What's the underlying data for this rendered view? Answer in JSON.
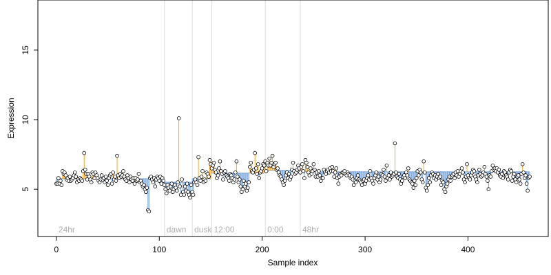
{
  "chart_data": {
    "type": "scatter",
    "xlabel": "Sample index",
    "ylabel": "Expression",
    "xlim": [
      -18,
      478
    ],
    "ylim": [
      1.6,
      18.6
    ],
    "x_ticks": [
      0,
      100,
      200,
      300,
      400
    ],
    "y_ticks": [
      5,
      10,
      15
    ],
    "grid": false,
    "legend": "none",
    "colors": {
      "above_median": "#f5a623",
      "below_median": "#6fa0dc",
      "median_step": "#9bbbe6",
      "points_fill": "#ffffff",
      "points_stroke": "#000000",
      "region_lines": "#dddddd",
      "region_text": "#b0b0b0"
    },
    "regions": [
      {
        "label": "24hr",
        "start": 0
      },
      {
        "label": "dawn",
        "start": 105
      },
      {
        "label": "dusk",
        "start": 132
      },
      {
        "label": "12:00",
        "start": 151
      },
      {
        "label": "0:00",
        "start": 203
      },
      {
        "label": "48hr",
        "start": 237
      }
    ],
    "segment_medians": [
      5.75,
      5.5,
      5.75,
      6.15,
      6.35,
      6.25
    ],
    "y": [
      5.4,
      5.4,
      5.8,
      5.4,
      5.6,
      5.3,
      6.3,
      6.1,
      6.2,
      6.0,
      5.7,
      5.8,
      5.6,
      5.9,
      5.6,
      5.7,
      5.8,
      6.0,
      6.2,
      5.9,
      5.5,
      5.7,
      5.6,
      5.8,
      5.7,
      5.6,
      6.3,
      7.6,
      6.4,
      6.1,
      5.7,
      6.1,
      5.9,
      5.7,
      5.5,
      6.2,
      6.1,
      5.8,
      6.2,
      6.0,
      5.8,
      5.6,
      5.5,
      5.7,
      6.0,
      5.7,
      5.8,
      5.5,
      5.9,
      5.6,
      5.3,
      5.8,
      6.0,
      6.1,
      5.4,
      6.2,
      5.7,
      5.9,
      5.6,
      7.4,
      6.0,
      5.8,
      6.1,
      5.9,
      6.0,
      6.3,
      5.9,
      5.7,
      5.6,
      6.0,
      5.8,
      5.5,
      5.9,
      5.7,
      5.6,
      5.8,
      5.4,
      5.8,
      5.6,
      5.7,
      6.1,
      5.5,
      5.6,
      5.4,
      5.2,
      5.3,
      5.0,
      4.8,
      5.1,
      3.5,
      3.4,
      5.8,
      5.9,
      5.7,
      5.5,
      5.8,
      5.2,
      5.7,
      5.9,
      5.8,
      5.6,
      5.9,
      5.4,
      5.8,
      5.6,
      5.3,
      5.0,
      4.7,
      5.3,
      5.1,
      4.9,
      5.2,
      5.4,
      4.8,
      5.0,
      5.3,
      5.1,
      4.9,
      5.5,
      10.1,
      5.2,
      4.6,
      5.7,
      4.8,
      4.6,
      5.2,
      4.9,
      5.4,
      4.8,
      4.6,
      4.4,
      5.3,
      4.8,
      4.6,
      5.5,
      5.7,
      5.5,
      5.3,
      7.3,
      5.8,
      5.6,
      5.9,
      6.3,
      5.5,
      5.7,
      5.6,
      6.2,
      6.1,
      5.9,
      7.1,
      6.8,
      6.5,
      6.7,
      6.9,
      6.4,
      6.2,
      5.8,
      6.0,
      6.5,
      7.0,
      6.3,
      6.1,
      5.7,
      6.2,
      6.3,
      6.0,
      5.9,
      5.8,
      5.6,
      6.1,
      6.0,
      5.8,
      5.5,
      5.7,
      6.2,
      7.0,
      5.9,
      5.5,
      5.7,
      5.2,
      4.8,
      5.0,
      5.6,
      5.2,
      5.4,
      4.9,
      5.1,
      5.5,
      6.6,
      6.9,
      6.3,
      6.2,
      6.4,
      7.6,
      6.5,
      6.1,
      6.8,
      5.8,
      6.2,
      6.3,
      6.5,
      6.8,
      6.7,
      7.0,
      6.3,
      6.9,
      6.7,
      7.2,
      6.7,
      6.9,
      7.4,
      6.6,
      6.8,
      6.9,
      6.4,
      6.5,
      6.2,
      6.0,
      5.9,
      5.7,
      5.5,
      5.3,
      5.6,
      6.0,
      6.2,
      5.8,
      6.1,
      5.7,
      5.9,
      6.4,
      6.9,
      6.3,
      6.1,
      6.2,
      6.4,
      6.7,
      6.5,
      6.2,
      6.6,
      6.8,
      6.3,
      5.8,
      7.1,
      6.9,
      6.6,
      6.2,
      6.0,
      6.5,
      6.1,
      6.3,
      6.8,
      6.4,
      5.9,
      6.2,
      5.9,
      6.3,
      6.0,
      5.6,
      5.8,
      5.8,
      6.4,
      6.2,
      6.1,
      6.3,
      6.4,
      6.2,
      6.5,
      6.3,
      6.6,
      6.3,
      5.9,
      6.2,
      6.5,
      5.8,
      5.4,
      5.9,
      6.1,
      6.0,
      6.2,
      6.2,
      6.3,
      6.1,
      6.0,
      6.2,
      6.1,
      6.0,
      5.8,
      5.9,
      5.7,
      5.3,
      5.6,
      5.5,
      5.8,
      6.0,
      5.7,
      5.6,
      5.5,
      5.3,
      5.6,
      5.7,
      5.4,
      5.6,
      5.8,
      6.0,
      5.7,
      6.3,
      5.8,
      5.6,
      5.4,
      5.8,
      6.0,
      6.2,
      5.7,
      5.9,
      5.5,
      5.7,
      6.1,
      6.0,
      6.4,
      5.9,
      5.6,
      6.7,
      5.8,
      6.0,
      5.7,
      6.2,
      5.9,
      6.0,
      6.1,
      8.3,
      6.2,
      5.9,
      5.8,
      6.1,
      5.7,
      5.4,
      5.6,
      5.9,
      6.0,
      5.8,
      6.2,
      6.0,
      6.5,
      5.7,
      5.6,
      5.5,
      5.4,
      5.1,
      5.6,
      5.3,
      5.8,
      6.3,
      6.0,
      6.4,
      6.2,
      5.7,
      5.5,
      7.0,
      6.2,
      5.1,
      4.9,
      5.3,
      5.8,
      5.5,
      6.0,
      6.2,
      6.1,
      5.8,
      6.0,
      5.7,
      5.9,
      6.1,
      5.8,
      5.9,
      5.3,
      5.6,
      5.5,
      5.0,
      4.8,
      5.2,
      5.4,
      5.7,
      5.9,
      5.6,
      5.9,
      6.0,
      6.1,
      5.8,
      6.2,
      6.0,
      6.3,
      5.9,
      6.1,
      6.3,
      6.5,
      6.2,
      5.7,
      5.5,
      5.9,
      6.8,
      6.0,
      5.8,
      5.7,
      6.0,
      6.2,
      6.4,
      6.3,
      5.9,
      5.7,
      5.5,
      6.0,
      6.4,
      6.1,
      5.9,
      6.0,
      6.2,
      6.6,
      6.1,
      5.9,
      5.6,
      5.0,
      6.0,
      5.9,
      6.3,
      6.7,
      6.4,
      6.5,
      6.3,
      6.5,
      6.2,
      6.4,
      6.0,
      5.9,
      6.1,
      5.8,
      6.3,
      6.2,
      6.0,
      5.9,
      5.7,
      6.2,
      6.4,
      6.3,
      5.6,
      5.9,
      6.1,
      5.7,
      5.5,
      5.9,
      6.0,
      5.7,
      5.4,
      6.1,
      6.8,
      6.2,
      5.8,
      6.0,
      5.4,
      4.9,
      5.8,
      5.9
    ]
  }
}
